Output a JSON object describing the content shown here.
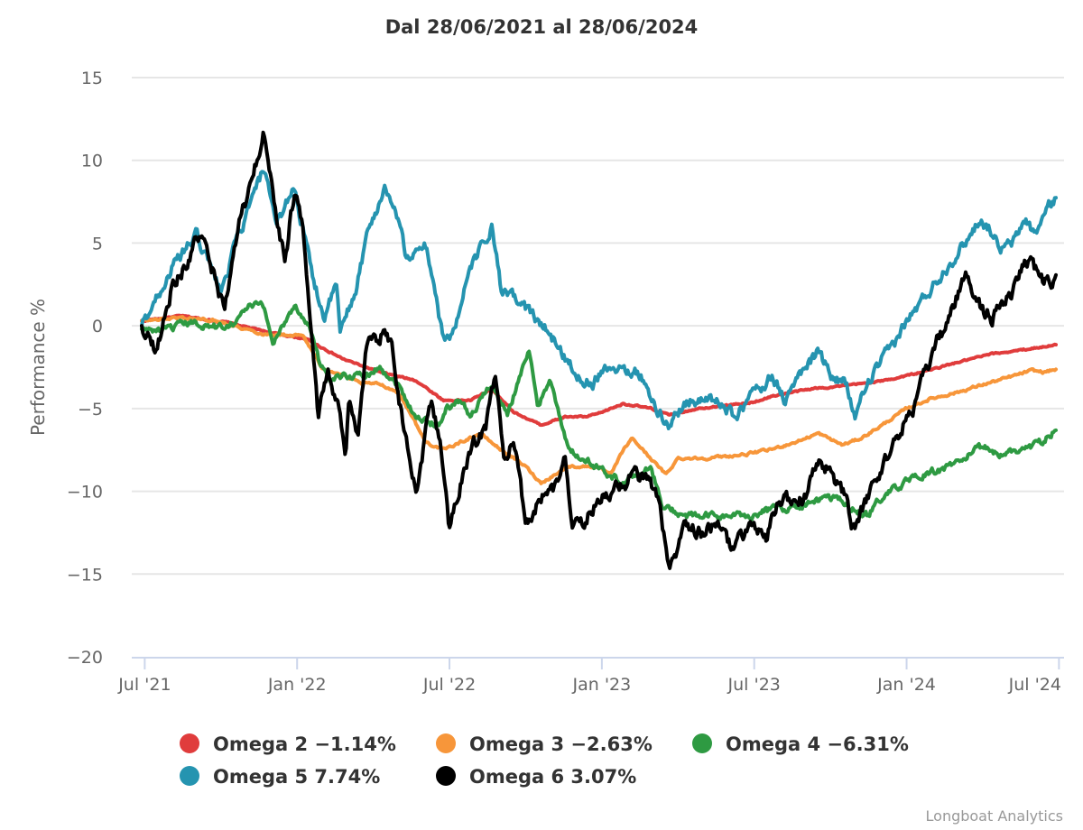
{
  "chart_data": {
    "type": "line",
    "title": "Dal 28/06/2021 al 28/06/2024",
    "xlabel": "",
    "ylabel": "Performance %",
    "x_units": "decimal year",
    "xlim": [
      2021.49,
      2024.49
    ],
    "ylim": [
      -20,
      15
    ],
    "yticks": [
      15,
      10,
      5,
      0,
      -5,
      -10,
      -15,
      -20
    ],
    "ytick_labels": [
      "15",
      "10",
      "5",
      "0",
      "−5",
      "−10",
      "−15",
      "−20"
    ],
    "xticks": [
      {
        "x": 2021.5,
        "label": "Jul '21"
      },
      {
        "x": 2022.0,
        "label": "Jan '22"
      },
      {
        "x": 2022.5,
        "label": "Jul '22"
      },
      {
        "x": 2023.0,
        "label": "Jan '23"
      },
      {
        "x": 2023.5,
        "label": "Jul '23"
      },
      {
        "x": 2024.0,
        "label": "Jan '24"
      },
      {
        "x": 2024.5,
        "label": "Jul '24"
      }
    ],
    "grid": true,
    "legend_position": "bottom",
    "credits": "Longboat Analytics",
    "series": [
      {
        "name": "Omega 2",
        "final": "−1.14%",
        "color": "#e03c3c",
        "width": 4,
        "points": [
          [
            2021.49,
            0.3
          ],
          [
            2021.62,
            0.6
          ],
          [
            2021.77,
            0.2
          ],
          [
            2021.91,
            -0.4
          ],
          [
            2022.03,
            -0.8
          ],
          [
            2022.15,
            -2
          ],
          [
            2022.27,
            -2.8
          ],
          [
            2022.39,
            -3.3
          ],
          [
            2022.48,
            -4.5
          ],
          [
            2022.57,
            -4.5
          ],
          [
            2022.64,
            -3.8
          ],
          [
            2022.71,
            -5.2
          ],
          [
            2022.8,
            -6
          ],
          [
            2022.88,
            -5.5
          ],
          [
            2022.95,
            -5.5
          ],
          [
            2022.99,
            -5.3
          ],
          [
            2023.07,
            -4.7
          ],
          [
            2023.16,
            -5
          ],
          [
            2023.22,
            -5.4
          ],
          [
            2023.31,
            -5
          ],
          [
            2023.4,
            -4.8
          ],
          [
            2023.48,
            -4.7
          ],
          [
            2023.57,
            -4.2
          ],
          [
            2023.69,
            -3.8
          ],
          [
            2023.81,
            -3.6
          ],
          [
            2023.93,
            -3.3
          ],
          [
            2024.05,
            -2.8
          ],
          [
            2024.17,
            -2.2
          ],
          [
            2024.28,
            -1.7
          ],
          [
            2024.4,
            -1.4
          ],
          [
            2024.49,
            -1.14
          ]
        ]
      },
      {
        "name": "Omega 3",
        "final": "−2.63%",
        "color": "#f7963a",
        "width": 4,
        "points": [
          [
            2021.49,
            0.3
          ],
          [
            2021.62,
            0.5
          ],
          [
            2021.74,
            0.3
          ],
          [
            2021.89,
            -0.5
          ],
          [
            2022.02,
            -0.6
          ],
          [
            2022.08,
            -2.5
          ],
          [
            2022.15,
            -3
          ],
          [
            2022.21,
            -3.5
          ],
          [
            2022.27,
            -3.5
          ],
          [
            2022.33,
            -4
          ],
          [
            2022.37,
            -5.2
          ],
          [
            2022.42,
            -7
          ],
          [
            2022.48,
            -7.5
          ],
          [
            2022.54,
            -7
          ],
          [
            2022.6,
            -6.5
          ],
          [
            2022.67,
            -7.5
          ],
          [
            2022.75,
            -8.5
          ],
          [
            2022.8,
            -9.5
          ],
          [
            2022.89,
            -8.5
          ],
          [
            2022.98,
            -8.5
          ],
          [
            2023.03,
            -9
          ],
          [
            2023.07,
            -7.5
          ],
          [
            2023.1,
            -6.8
          ],
          [
            2023.16,
            -8
          ],
          [
            2023.21,
            -9
          ],
          [
            2023.25,
            -8
          ],
          [
            2023.34,
            -8
          ],
          [
            2023.46,
            -7.8
          ],
          [
            2023.55,
            -7.5
          ],
          [
            2023.64,
            -7
          ],
          [
            2023.71,
            -6.5
          ],
          [
            2023.79,
            -7.2
          ],
          [
            2023.85,
            -6.8
          ],
          [
            2023.92,
            -6
          ],
          [
            2024.0,
            -5
          ],
          [
            2024.08,
            -4.4
          ],
          [
            2024.17,
            -4
          ],
          [
            2024.26,
            -3.5
          ],
          [
            2024.32,
            -3.2
          ],
          [
            2024.41,
            -2.7
          ],
          [
            2024.45,
            -2.8
          ],
          [
            2024.49,
            -2.63
          ]
        ]
      },
      {
        "name": "Omega 4",
        "final": "−6.31%",
        "color": "#2e9a42",
        "width": 4,
        "points": [
          [
            2021.49,
            -0.2
          ],
          [
            2021.57,
            -0.3
          ],
          [
            2021.65,
            0.2
          ],
          [
            2021.74,
            -0.1
          ],
          [
            2021.8,
            0.3
          ],
          [
            2021.84,
            1.2
          ],
          [
            2021.89,
            1.2
          ],
          [
            2021.92,
            -1
          ],
          [
            2021.99,
            1.2
          ],
          [
            2022.04,
            0.1
          ],
          [
            2022.07,
            -2
          ],
          [
            2022.11,
            -3.5
          ],
          [
            2022.15,
            -3
          ],
          [
            2022.21,
            -3
          ],
          [
            2022.27,
            -2.5
          ],
          [
            2022.33,
            -3.5
          ],
          [
            2022.39,
            -5.5
          ],
          [
            2022.46,
            -6
          ],
          [
            2022.49,
            -5
          ],
          [
            2022.54,
            -4.5
          ],
          [
            2022.57,
            -5.5
          ],
          [
            2022.6,
            -4.5
          ],
          [
            2022.64,
            -3.5
          ],
          [
            2022.69,
            -5.5
          ],
          [
            2022.73,
            -3
          ],
          [
            2022.76,
            -1.5
          ],
          [
            2022.79,
            -5
          ],
          [
            2022.83,
            -3
          ],
          [
            2022.86,
            -5.5
          ],
          [
            2022.89,
            -7.5
          ],
          [
            2022.93,
            -8
          ],
          [
            2022.98,
            -8.5
          ],
          [
            2023.07,
            -9.5
          ],
          [
            2023.16,
            -8.5
          ],
          [
            2023.2,
            -11
          ],
          [
            2023.28,
            -11.5
          ],
          [
            2023.4,
            -11.5
          ],
          [
            2023.48,
            -11.5
          ],
          [
            2023.57,
            -11
          ],
          [
            2023.63,
            -11
          ],
          [
            2023.72,
            -10.5
          ],
          [
            2023.78,
            -10.5
          ],
          [
            2023.82,
            -11
          ],
          [
            2023.87,
            -11.5
          ],
          [
            2023.91,
            -10.5
          ],
          [
            2023.99,
            -9.5
          ],
          [
            2024.06,
            -9
          ],
          [
            2024.14,
            -8.5
          ],
          [
            2024.23,
            -7.5
          ],
          [
            2024.27,
            -7.3
          ],
          [
            2024.3,
            -7.8
          ],
          [
            2024.38,
            -7.5
          ],
          [
            2024.44,
            -7
          ],
          [
            2024.49,
            -6.31
          ]
        ]
      },
      {
        "name": "Omega 5",
        "final": "7.74%",
        "color": "#2594b0",
        "width": 4,
        "points": [
          [
            2021.49,
            0
          ],
          [
            2021.59,
            3.5
          ],
          [
            2021.67,
            5.5
          ],
          [
            2021.75,
            2
          ],
          [
            2021.8,
            5
          ],
          [
            2021.89,
            9.5
          ],
          [
            2021.93,
            6
          ],
          [
            2021.99,
            8.5
          ],
          [
            2022.05,
            3
          ],
          [
            2022.09,
            0.5
          ],
          [
            2022.13,
            2.5
          ],
          [
            2022.14,
            -0.5
          ],
          [
            2022.19,
            2
          ],
          [
            2022.23,
            5.5
          ],
          [
            2022.29,
            8.5
          ],
          [
            2022.33,
            6.5
          ],
          [
            2022.36,
            4
          ],
          [
            2022.42,
            5
          ],
          [
            2022.45,
            2.5
          ],
          [
            2022.48,
            -1
          ],
          [
            2022.52,
            0
          ],
          [
            2022.57,
            3.5
          ],
          [
            2022.64,
            6
          ],
          [
            2022.67,
            2
          ],
          [
            2022.73,
            1.5
          ],
          [
            2022.78,
            0.5
          ],
          [
            2022.83,
            -0.5
          ],
          [
            2022.92,
            -3
          ],
          [
            2022.97,
            -3.5
          ],
          [
            2023.0,
            -2.5
          ],
          [
            2023.07,
            -2.5
          ],
          [
            2023.13,
            -3
          ],
          [
            2023.16,
            -4.5
          ],
          [
            2023.22,
            -6
          ],
          [
            2023.28,
            -4.5
          ],
          [
            2023.37,
            -4.5
          ],
          [
            2023.44,
            -5.5
          ],
          [
            2023.5,
            -4
          ],
          [
            2023.56,
            -3
          ],
          [
            2023.6,
            -4.5
          ],
          [
            2023.65,
            -3
          ],
          [
            2023.71,
            -1.5
          ],
          [
            2023.75,
            -3
          ],
          [
            2023.8,
            -3.5
          ],
          [
            2023.83,
            -5.5
          ],
          [
            2023.87,
            -3.5
          ],
          [
            2023.96,
            -1
          ],
          [
            2023.99,
            0
          ],
          [
            2024.05,
            1.5
          ],
          [
            2024.11,
            3
          ],
          [
            2024.17,
            4.5
          ],
          [
            2024.21,
            5.5
          ],
          [
            2024.24,
            6.5
          ],
          [
            2024.29,
            5.5
          ],
          [
            2024.3,
            4.5
          ],
          [
            2024.35,
            5
          ],
          [
            2024.39,
            6.5
          ],
          [
            2024.42,
            5.5
          ],
          [
            2024.46,
            7
          ],
          [
            2024.49,
            7.74
          ]
        ]
      },
      {
        "name": "Omega 6",
        "final": "3.07%",
        "color": "#000000",
        "width": 4,
        "points": [
          [
            2021.49,
            0
          ],
          [
            2021.54,
            -1.5
          ],
          [
            2021.59,
            2.5
          ],
          [
            2021.63,
            3.5
          ],
          [
            2021.68,
            5.5
          ],
          [
            2021.73,
            3
          ],
          [
            2021.76,
            1
          ],
          [
            2021.81,
            6
          ],
          [
            2021.89,
            11.5
          ],
          [
            2021.92,
            8
          ],
          [
            2021.96,
            4
          ],
          [
            2021.99,
            8
          ],
          [
            2022.02,
            6
          ],
          [
            2022.04,
            1.5
          ],
          [
            2022.07,
            -5.5
          ],
          [
            2022.1,
            -3
          ],
          [
            2022.13,
            -4.5
          ],
          [
            2022.16,
            -8
          ],
          [
            2022.17,
            -4.5
          ],
          [
            2022.2,
            -7
          ],
          [
            2022.23,
            -1
          ],
          [
            2022.28,
            -0.5
          ],
          [
            2022.31,
            -1
          ],
          [
            2022.34,
            -5
          ],
          [
            2022.39,
            -10
          ],
          [
            2022.44,
            -4.5
          ],
          [
            2022.47,
            -7
          ],
          [
            2022.5,
            -12.5
          ],
          [
            2022.53,
            -10
          ],
          [
            2022.57,
            -7.5
          ],
          [
            2022.62,
            -6
          ],
          [
            2022.65,
            -3
          ],
          [
            2022.68,
            -8
          ],
          [
            2022.71,
            -7
          ],
          [
            2022.75,
            -12
          ],
          [
            2022.81,
            -10
          ],
          [
            2022.84,
            -10
          ],
          [
            2022.88,
            -8
          ],
          [
            2022.9,
            -12
          ],
          [
            2022.93,
            -12
          ],
          [
            2022.97,
            -11
          ],
          [
            2023.03,
            -10
          ],
          [
            2023.11,
            -9
          ],
          [
            2023.16,
            -9.5
          ],
          [
            2023.19,
            -11
          ],
          [
            2023.22,
            -15
          ],
          [
            2023.25,
            -13.5
          ],
          [
            2023.28,
            -12
          ],
          [
            2023.33,
            -12.5
          ],
          [
            2023.37,
            -12
          ],
          [
            2023.43,
            -13.5
          ],
          [
            2023.49,
            -12
          ],
          [
            2023.54,
            -13
          ],
          [
            2023.58,
            -10.5
          ],
          [
            2023.66,
            -10.5
          ],
          [
            2023.72,
            -8
          ],
          [
            2023.75,
            -9
          ],
          [
            2023.79,
            -10
          ],
          [
            2023.83,
            -12.5
          ],
          [
            2023.88,
            -10
          ],
          [
            2023.92,
            -8.5
          ],
          [
            2023.96,
            -7
          ],
          [
            2024.02,
            -5
          ],
          [
            2024.07,
            -2.5
          ],
          [
            2024.1,
            -1
          ],
          [
            2024.13,
            0
          ],
          [
            2024.17,
            2
          ],
          [
            2024.2,
            3
          ],
          [
            2024.25,
            1
          ],
          [
            2024.28,
            0.5
          ],
          [
            2024.3,
            1
          ],
          [
            2024.35,
            2
          ],
          [
            2024.39,
            4
          ],
          [
            2024.44,
            3
          ],
          [
            2024.47,
            2.5
          ],
          [
            2024.49,
            3.07
          ]
        ]
      }
    ]
  }
}
